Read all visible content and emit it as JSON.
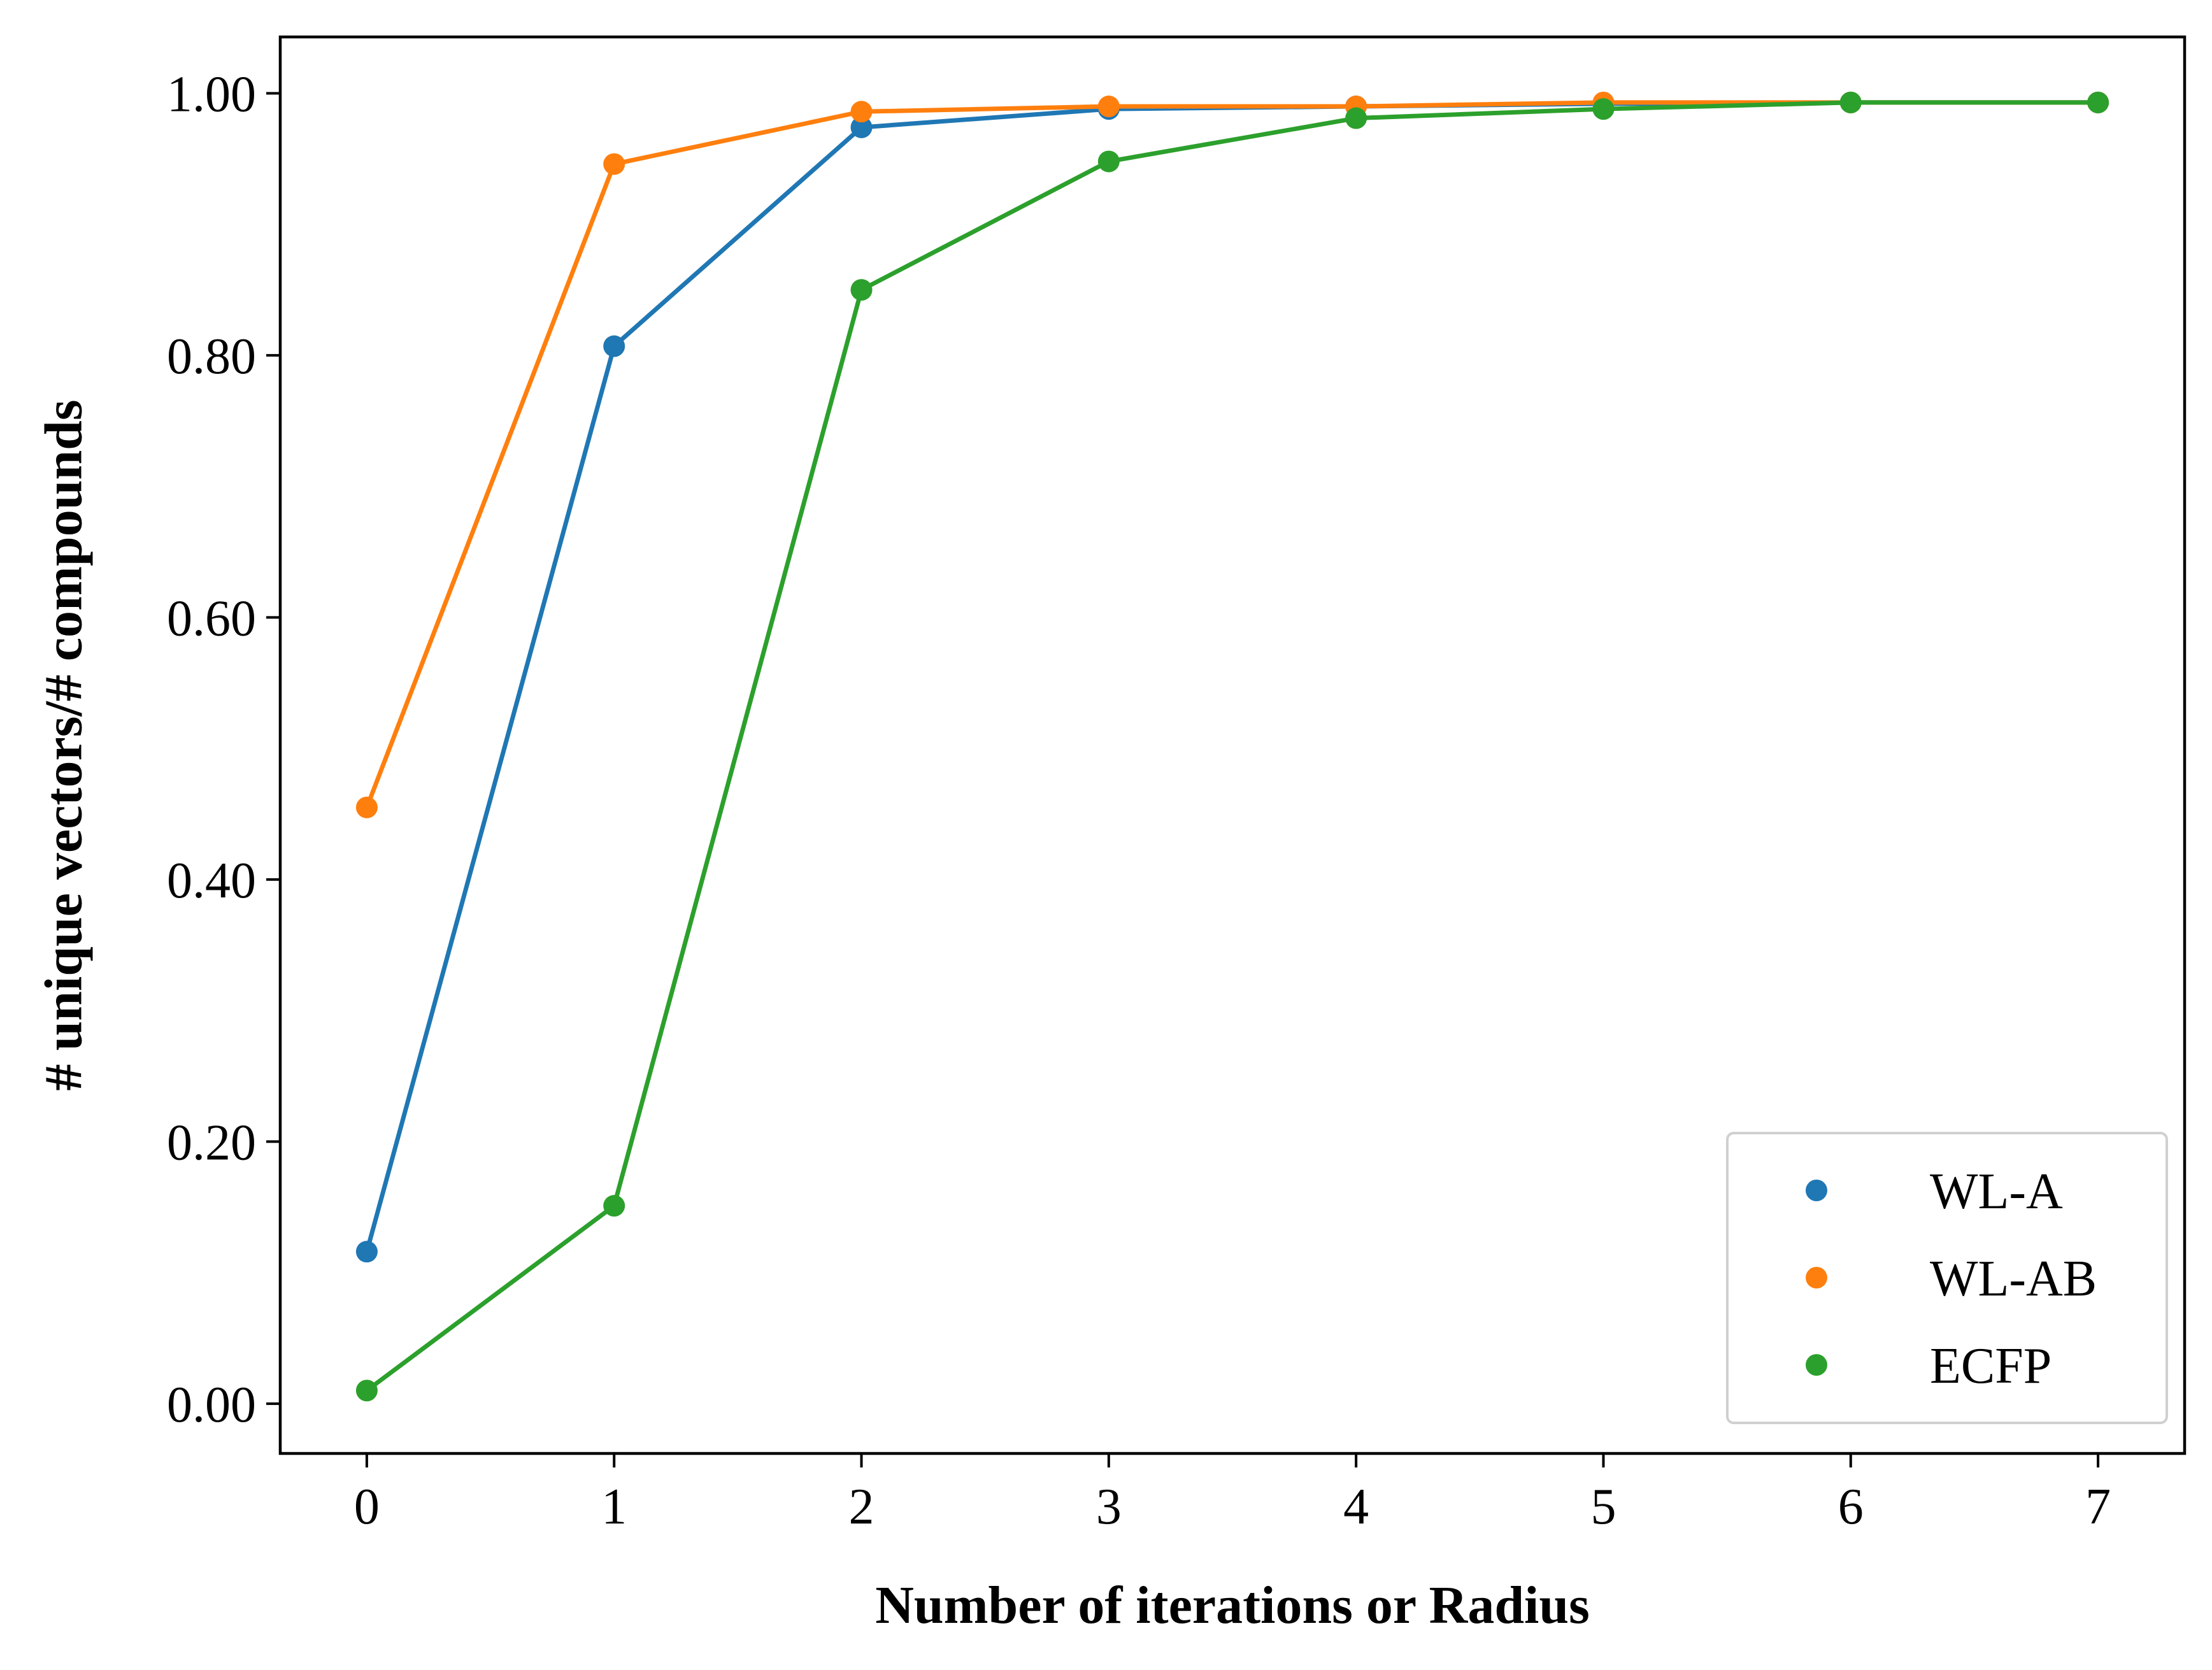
{
  "chart_data": {
    "type": "line",
    "xlabel": "Number of iterations or Radius",
    "ylabel": "# unique vectors/# compounds",
    "xlim": [
      -0.35,
      7.35
    ],
    "ylim": [
      -0.038,
      1.043
    ],
    "x_ticks": [
      0,
      1,
      2,
      3,
      4,
      5,
      6,
      7
    ],
    "x_tick_labels": [
      "0",
      "1",
      "2",
      "3",
      "4",
      "5",
      "6",
      "7"
    ],
    "y_ticks": [
      0,
      0.2,
      0.4,
      0.6,
      0.8,
      1.0
    ],
    "y_tick_labels": [
      "0.00",
      "0.20",
      "0.40",
      "0.60",
      "0.80",
      "1.00"
    ],
    "grid": false,
    "legend_position": "bottom-right",
    "x": [
      0,
      1,
      2,
      3,
      4,
      5,
      6,
      7
    ],
    "series": [
      {
        "name": "WL-A",
        "color": "#1f77b4",
        "values": [
          0.116,
          0.807,
          0.974,
          0.988,
          0.99,
          0.992,
          0.993,
          0.993
        ]
      },
      {
        "name": "WL-AB",
        "color": "#ff7f0e",
        "values": [
          0.455,
          0.946,
          0.986,
          0.99,
          0.99,
          0.993,
          0.993,
          0.993
        ]
      },
      {
        "name": "ECFP",
        "color": "#2ca02c",
        "values": [
          0.01,
          0.151,
          0.85,
          0.948,
          0.981,
          0.988,
          0.993,
          0.993
        ]
      }
    ]
  }
}
